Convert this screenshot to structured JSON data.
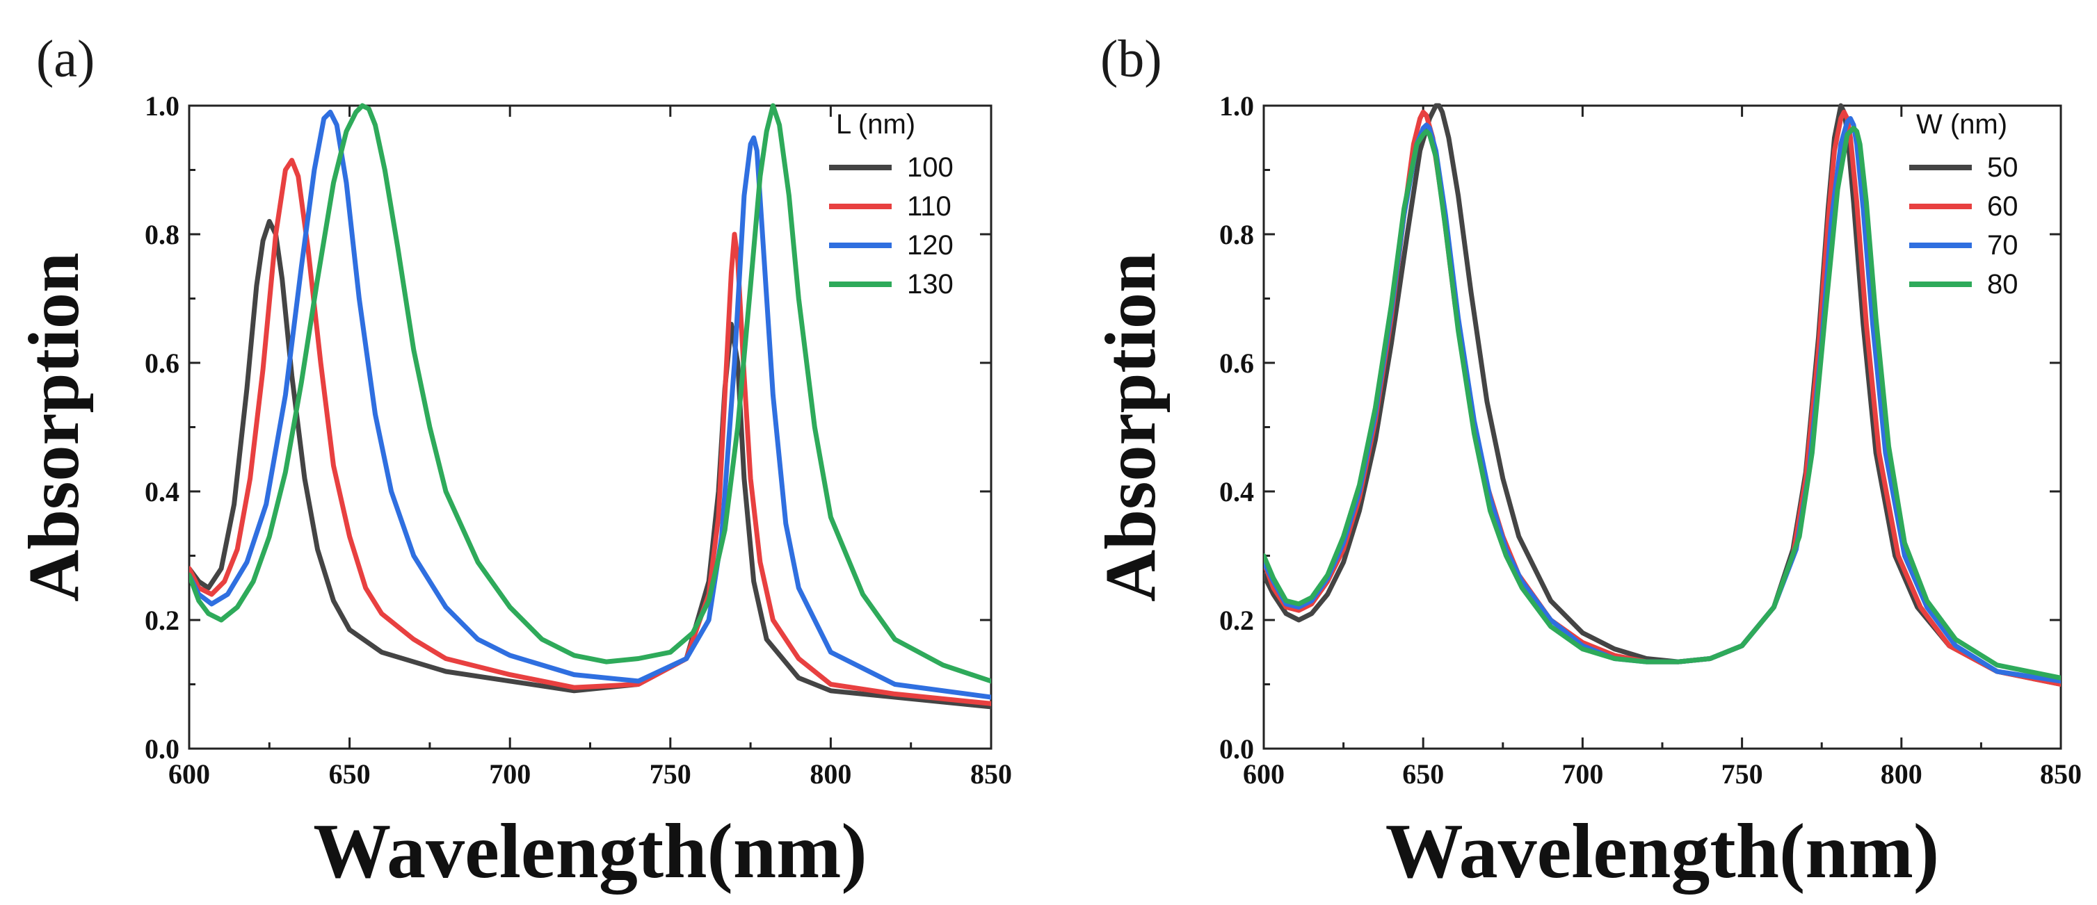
{
  "chart_data": [
    {
      "type": "line",
      "panel_label": "(a)",
      "xlabel": "Wavelength(nm)",
      "ylabel": "Absorption",
      "xlim": [
        600,
        850
      ],
      "ylim": [
        0.0,
        1.0
      ],
      "xticks": [
        600,
        650,
        700,
        750,
        800,
        850
      ],
      "xtick_labels": [
        "600",
        "650",
        "700",
        "750",
        "800",
        "850"
      ],
      "yticks": [
        0.0,
        0.2,
        0.4,
        0.6,
        0.8,
        1.0
      ],
      "ytick_labels": [
        "0.0",
        "0.2",
        "0.4",
        "0.6",
        "0.8",
        "1.0"
      ],
      "legend_title": "L (nm)",
      "legend_position": "top-right",
      "grid": false,
      "series": [
        {
          "name": "100",
          "color": "#444444",
          "x": [
            600,
            603,
            606,
            610,
            614,
            618,
            621,
            623,
            625,
            627,
            629,
            632,
            636,
            640,
            645,
            650,
            660,
            680,
            700,
            720,
            740,
            755,
            762,
            765,
            767,
            769,
            771,
            773,
            776,
            780,
            790,
            800,
            820,
            850
          ],
          "y": [
            0.28,
            0.26,
            0.25,
            0.28,
            0.38,
            0.56,
            0.72,
            0.79,
            0.82,
            0.8,
            0.73,
            0.58,
            0.42,
            0.31,
            0.23,
            0.185,
            0.15,
            0.12,
            0.105,
            0.09,
            0.1,
            0.14,
            0.26,
            0.4,
            0.56,
            0.66,
            0.6,
            0.42,
            0.26,
            0.17,
            0.11,
            0.09,
            0.08,
            0.065
          ]
        },
        {
          "name": "110",
          "color": "#e84040",
          "x": [
            600,
            603,
            607,
            611,
            615,
            619,
            623,
            627,
            630,
            632,
            634,
            637,
            641,
            645,
            650,
            655,
            660,
            670,
            680,
            700,
            720,
            740,
            755,
            762,
            765,
            767,
            769,
            770,
            771,
            773,
            775,
            778,
            782,
            790,
            800,
            820,
            850
          ],
          "y": [
            0.28,
            0.25,
            0.24,
            0.26,
            0.31,
            0.42,
            0.59,
            0.8,
            0.9,
            0.915,
            0.89,
            0.78,
            0.6,
            0.44,
            0.33,
            0.25,
            0.21,
            0.17,
            0.14,
            0.115,
            0.095,
            0.1,
            0.14,
            0.24,
            0.36,
            0.55,
            0.74,
            0.8,
            0.76,
            0.58,
            0.42,
            0.29,
            0.2,
            0.14,
            0.1,
            0.085,
            0.07
          ]
        },
        {
          "name": "120",
          "color": "#2f6fe0",
          "x": [
            600,
            603,
            607,
            612,
            618,
            624,
            630,
            635,
            639,
            642,
            644,
            646,
            649,
            653,
            658,
            663,
            670,
            680,
            690,
            700,
            720,
            740,
            755,
            762,
            766,
            770,
            773,
            775,
            776,
            777,
            779,
            782,
            786,
            790,
            800,
            820,
            850
          ],
          "y": [
            0.27,
            0.24,
            0.225,
            0.24,
            0.29,
            0.38,
            0.55,
            0.75,
            0.9,
            0.98,
            0.99,
            0.97,
            0.88,
            0.7,
            0.52,
            0.4,
            0.3,
            0.22,
            0.17,
            0.145,
            0.115,
            0.105,
            0.14,
            0.2,
            0.33,
            0.6,
            0.86,
            0.94,
            0.95,
            0.93,
            0.78,
            0.55,
            0.35,
            0.25,
            0.15,
            0.1,
            0.08
          ]
        },
        {
          "name": "130",
          "color": "#2eaa5a",
          "x": [
            600,
            603,
            606,
            610,
            615,
            620,
            625,
            630,
            635,
            640,
            645,
            649,
            652,
            654,
            656,
            658,
            661,
            665,
            670,
            675,
            680,
            690,
            700,
            710,
            720,
            730,
            740,
            750,
            757,
            762,
            767,
            771,
            775,
            778,
            780,
            782,
            784,
            787,
            790,
            795,
            800,
            810,
            820,
            835,
            850
          ],
          "y": [
            0.27,
            0.23,
            0.21,
            0.2,
            0.22,
            0.26,
            0.33,
            0.43,
            0.57,
            0.73,
            0.88,
            0.96,
            0.99,
            1.0,
            0.995,
            0.97,
            0.9,
            0.78,
            0.62,
            0.5,
            0.4,
            0.29,
            0.22,
            0.17,
            0.145,
            0.135,
            0.14,
            0.15,
            0.18,
            0.23,
            0.34,
            0.5,
            0.72,
            0.89,
            0.96,
            1.0,
            0.97,
            0.86,
            0.7,
            0.5,
            0.36,
            0.24,
            0.17,
            0.13,
            0.105
          ]
        }
      ]
    },
    {
      "type": "line",
      "panel_label": "(b)",
      "xlabel": "Wavelength(nm)",
      "ylabel": "Absorption",
      "xlim": [
        600,
        850
      ],
      "ylim": [
        0.0,
        1.0
      ],
      "xticks": [
        600,
        650,
        700,
        750,
        800,
        850
      ],
      "xtick_labels": [
        "600",
        "650",
        "700",
        "750",
        "800",
        "850"
      ],
      "yticks": [
        0.0,
        0.2,
        0.4,
        0.6,
        0.8,
        1.0
      ],
      "ytick_labels": [
        "0.0",
        "0.2",
        "0.4",
        "0.6",
        "0.8",
        "1.0"
      ],
      "legend_title": "W (nm)",
      "legend_position": "top-right",
      "grid": false,
      "series": [
        {
          "name": "50",
          "color": "#444444",
          "x": [
            600,
            603,
            607,
            611,
            615,
            620,
            625,
            630,
            635,
            640,
            645,
            649,
            652,
            654,
            655,
            656,
            658,
            661,
            665,
            670,
            675,
            680,
            690,
            700,
            710,
            720,
            730,
            740,
            750,
            760,
            766,
            770,
            774,
            777,
            779,
            781,
            782,
            783,
            785,
            788,
            792,
            798,
            805,
            815,
            830,
            850
          ],
          "y": [
            0.27,
            0.24,
            0.21,
            0.2,
            0.21,
            0.24,
            0.29,
            0.37,
            0.48,
            0.63,
            0.8,
            0.93,
            0.98,
            1.0,
            1.0,
            0.99,
            0.95,
            0.86,
            0.71,
            0.54,
            0.42,
            0.33,
            0.23,
            0.18,
            0.155,
            0.14,
            0.135,
            0.14,
            0.16,
            0.22,
            0.31,
            0.43,
            0.64,
            0.84,
            0.95,
            1.0,
            0.99,
            0.96,
            0.85,
            0.66,
            0.46,
            0.3,
            0.22,
            0.16,
            0.12,
            0.1
          ]
        },
        {
          "name": "60",
          "color": "#e84040",
          "x": [
            600,
            603,
            607,
            611,
            615,
            620,
            625,
            630,
            635,
            640,
            644,
            647,
            649,
            650,
            651,
            653,
            656,
            660,
            665,
            670,
            675,
            680,
            690,
            700,
            710,
            720,
            730,
            740,
            750,
            760,
            766,
            770,
            774,
            777,
            779,
            781,
            782,
            783,
            784,
            786,
            789,
            793,
            799,
            806,
            815,
            830,
            850
          ],
          "y": [
            0.29,
            0.25,
            0.22,
            0.215,
            0.225,
            0.26,
            0.31,
            0.39,
            0.51,
            0.67,
            0.83,
            0.94,
            0.98,
            0.99,
            0.985,
            0.95,
            0.85,
            0.69,
            0.53,
            0.41,
            0.33,
            0.27,
            0.2,
            0.165,
            0.145,
            0.135,
            0.135,
            0.14,
            0.16,
            0.22,
            0.3,
            0.42,
            0.62,
            0.82,
            0.93,
            0.98,
            0.99,
            0.98,
            0.95,
            0.85,
            0.66,
            0.46,
            0.3,
            0.22,
            0.16,
            0.12,
            0.1
          ]
        },
        {
          "name": "70",
          "color": "#2f6fe0",
          "x": [
            600,
            603,
            607,
            611,
            615,
            620,
            625,
            630,
            635,
            640,
            644,
            648,
            650,
            651,
            652,
            654,
            657,
            661,
            666,
            671,
            676,
            681,
            690,
            700,
            710,
            720,
            730,
            740,
            750,
            760,
            767,
            771,
            775,
            778,
            781,
            783,
            784,
            785,
            786,
            788,
            791,
            795,
            801,
            808,
            817,
            830,
            850
          ],
          "y": [
            0.29,
            0.26,
            0.225,
            0.22,
            0.23,
            0.265,
            0.32,
            0.4,
            0.52,
            0.68,
            0.83,
            0.94,
            0.965,
            0.97,
            0.965,
            0.93,
            0.83,
            0.67,
            0.51,
            0.39,
            0.31,
            0.26,
            0.2,
            0.16,
            0.14,
            0.135,
            0.135,
            0.14,
            0.16,
            0.22,
            0.31,
            0.43,
            0.63,
            0.82,
            0.94,
            0.975,
            0.98,
            0.97,
            0.94,
            0.84,
            0.66,
            0.46,
            0.3,
            0.22,
            0.16,
            0.12,
            0.105
          ]
        },
        {
          "name": "80",
          "color": "#2eaa5a",
          "x": [
            600,
            603,
            607,
            611,
            615,
            620,
            625,
            630,
            635,
            640,
            644,
            648,
            650,
            651,
            652,
            654,
            657,
            661,
            666,
            671,
            676,
            681,
            690,
            700,
            710,
            720,
            730,
            740,
            750,
            760,
            768,
            772,
            776,
            780,
            783,
            785,
            786,
            787,
            789,
            792,
            796,
            801,
            808,
            817,
            830,
            850
          ],
          "y": [
            0.3,
            0.265,
            0.23,
            0.225,
            0.235,
            0.27,
            0.33,
            0.41,
            0.53,
            0.69,
            0.84,
            0.94,
            0.955,
            0.96,
            0.955,
            0.92,
            0.81,
            0.65,
            0.49,
            0.37,
            0.3,
            0.25,
            0.19,
            0.155,
            0.14,
            0.135,
            0.135,
            0.14,
            0.16,
            0.22,
            0.33,
            0.46,
            0.67,
            0.87,
            0.955,
            0.965,
            0.96,
            0.94,
            0.85,
            0.67,
            0.47,
            0.32,
            0.23,
            0.17,
            0.13,
            0.11
          ]
        }
      ]
    }
  ]
}
